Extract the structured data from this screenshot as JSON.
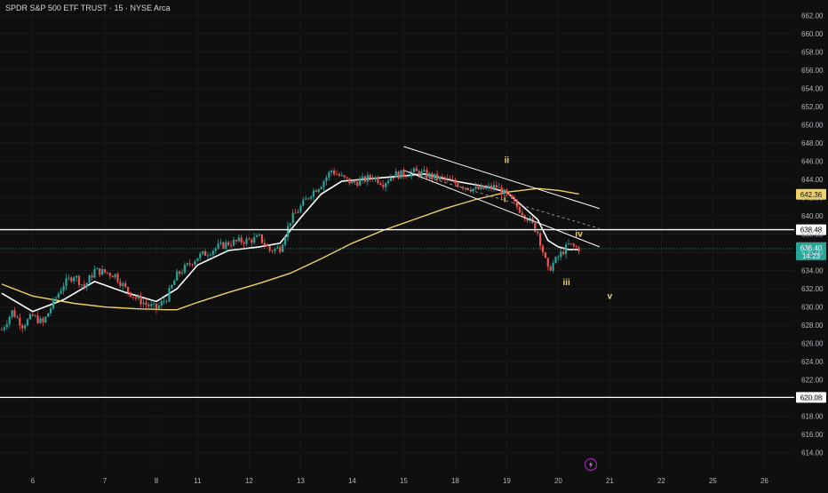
{
  "header": {
    "title": "SPDR S&P 500 ETF TRUST · 15 · NYSE Arca"
  },
  "colors": {
    "background": "#0f0f0f",
    "up": "#26a69a",
    "down": "#ef5350",
    "ma_fast": "#ffffff",
    "ma_slow": "#f0d264",
    "wave_label": "#f0d264",
    "grid": "#1a1a1a"
  },
  "icons": {
    "bolt": "lightning-bolt-icon"
  },
  "chart_data": {
    "type": "candlestick",
    "title": "SPDR S&P 500 ETF TRUST · 15 · NYSE Arca",
    "ylim": [
      613,
      663
    ],
    "y_ticks": [
      "662.00",
      "660.00",
      "658.00",
      "656.00",
      "654.00",
      "652.00",
      "650.00",
      "648.00",
      "646.00",
      "644.00",
      "642.00",
      "640.00",
      "638.00",
      "636.00",
      "634.00",
      "632.00",
      "630.00",
      "628.00",
      "626.00",
      "624.00",
      "622.00",
      "620.00",
      "618.00",
      "616.00",
      "614.00"
    ],
    "x_tick_labels": [
      "6",
      "7",
      "8",
      "11",
      "12",
      "13",
      "14",
      "15",
      "18",
      "19",
      "20",
      "21",
      "22",
      "25",
      "26"
    ],
    "price_path": [
      [
        0,
        627.5
      ],
      [
        1,
        629.5
      ],
      [
        2,
        628.0
      ],
      [
        3,
        629.0
      ],
      [
        4,
        628.2
      ],
      [
        5,
        630.5
      ],
      [
        6,
        632.5
      ],
      [
        7,
        633.5
      ],
      [
        8,
        632.2
      ],
      [
        9,
        634.0
      ],
      [
        10,
        633.8
      ],
      [
        11,
        633.5
      ],
      [
        12,
        632.0
      ],
      [
        13,
        631.0
      ],
      [
        14,
        630.3
      ],
      [
        15,
        629.8
      ],
      [
        16,
        631.0
      ],
      [
        17,
        633.5
      ],
      [
        18,
        634.5
      ],
      [
        19,
        635.5
      ],
      [
        20,
        636.0
      ],
      [
        21,
        636.6
      ],
      [
        22,
        637.0
      ],
      [
        23,
        637.2
      ],
      [
        24,
        637.3
      ],
      [
        25,
        637.6
      ],
      [
        26,
        636.2
      ],
      [
        27,
        636.5
      ],
      [
        28,
        639.5
      ],
      [
        29,
        641.0
      ],
      [
        30,
        642.5
      ],
      [
        31,
        643.5
      ],
      [
        32,
        645.0
      ],
      [
        33,
        644.2
      ],
      [
        34,
        643.6
      ],
      [
        35,
        643.9
      ],
      [
        36,
        644.3
      ],
      [
        37,
        643.6
      ],
      [
        38,
        644.5
      ],
      [
        39,
        644.6
      ],
      [
        40,
        644.8
      ],
      [
        41,
        644.6
      ],
      [
        42,
        644.2
      ],
      [
        43,
        644.0
      ],
      [
        44,
        643.6
      ],
      [
        45,
        643.2
      ],
      [
        46,
        642.9
      ],
      [
        47,
        643.0
      ],
      [
        48,
        643.2
      ],
      [
        49,
        642.2
      ],
      [
        50,
        641.0
      ],
      [
        51,
        639.8
      ],
      [
        52,
        638.2
      ],
      [
        53,
        634.0
      ],
      [
        54,
        635.5
      ],
      [
        55,
        636.8
      ],
      [
        56,
        636.4
      ]
    ],
    "x_ticks_index": [
      3,
      10,
      15,
      19,
      24,
      29,
      34,
      39,
      44,
      49,
      54,
      59,
      64,
      69,
      74
    ],
    "overlays": [
      {
        "name": "",
        "kind": "moving-average",
        "color": "#ffffff",
        "values": [
          [
            0,
            631.5
          ],
          [
            3,
            629.5
          ],
          [
            6,
            630.8
          ],
          [
            9,
            632.8
          ],
          [
            12,
            631.6
          ],
          [
            15,
            630.6
          ],
          [
            17,
            632.0
          ],
          [
            19,
            634.6
          ],
          [
            22,
            636.2
          ],
          [
            25,
            636.6
          ],
          [
            27,
            637.0
          ],
          [
            29,
            639.8
          ],
          [
            31,
            642.4
          ],
          [
            33,
            643.8
          ],
          [
            35,
            644.0
          ],
          [
            38,
            644.3
          ],
          [
            41,
            644.6
          ],
          [
            44,
            643.8
          ],
          [
            47,
            643.2
          ],
          [
            49,
            642.6
          ],
          [
            51,
            640.6
          ],
          [
            52,
            639.6
          ],
          [
            53,
            637.3
          ],
          [
            54,
            636.6
          ],
          [
            55,
            636.3
          ],
          [
            56,
            636.3
          ]
        ]
      },
      {
        "name": "",
        "kind": "moving-average",
        "color": "#f0d264",
        "values": [
          [
            0,
            632.5
          ],
          [
            3,
            631.2
          ],
          [
            7,
            630.4
          ],
          [
            10,
            630.0
          ],
          [
            13,
            629.8
          ],
          [
            16,
            629.7
          ],
          [
            17,
            629.7
          ],
          [
            19,
            630.5
          ],
          [
            22,
            631.6
          ],
          [
            25,
            632.6
          ],
          [
            28,
            633.7
          ],
          [
            31,
            635.3
          ],
          [
            34,
            637.0
          ],
          [
            37,
            638.4
          ],
          [
            40,
            639.6
          ],
          [
            43,
            640.8
          ],
          [
            46,
            641.8
          ],
          [
            49,
            642.6
          ],
          [
            52,
            643.0
          ],
          [
            54,
            642.8
          ],
          [
            56,
            642.4
          ]
        ]
      }
    ],
    "horizontal_lines": [
      {
        "price": 638.48,
        "label": "638.48",
        "color": "#ffffff"
      },
      {
        "price": 620.08,
        "label": "620.08",
        "color": "#ffffff"
      }
    ],
    "price_labels": [
      {
        "price": 642.36,
        "label": "642.36",
        "bg": "#f0d264",
        "fg": "#000000"
      },
      {
        "price": 636.5,
        "label": "636.50",
        "bg": "#ffffff",
        "fg": "#000000"
      },
      {
        "price": 636.4,
        "label": "636.40",
        "sub": "14:23",
        "bg": "#26a69a",
        "fg": "#ffffff"
      }
    ],
    "last_price": 636.4,
    "channel": {
      "upper": [
        [
          39,
          647.6
        ],
        [
          58,
          640.8
        ]
      ],
      "lower": [
        [
          39,
          645.0
        ],
        [
          58,
          636.6
        ]
      ],
      "dashed": [
        [
          39,
          645.0
        ],
        [
          58,
          638.6
        ]
      ]
    },
    "wave_labels": [
      {
        "label": "ii",
        "x": 49,
        "y": 645.8
      },
      {
        "label": "i",
        "x": 48.8,
        "y": 641.5
      },
      {
        "label": "iv",
        "x": 56,
        "y": 637.7
      },
      {
        "label": "iii",
        "x": 54.8,
        "y": 632.4
      },
      {
        "label": "v",
        "x": 59,
        "y": 630.9
      }
    ]
  }
}
